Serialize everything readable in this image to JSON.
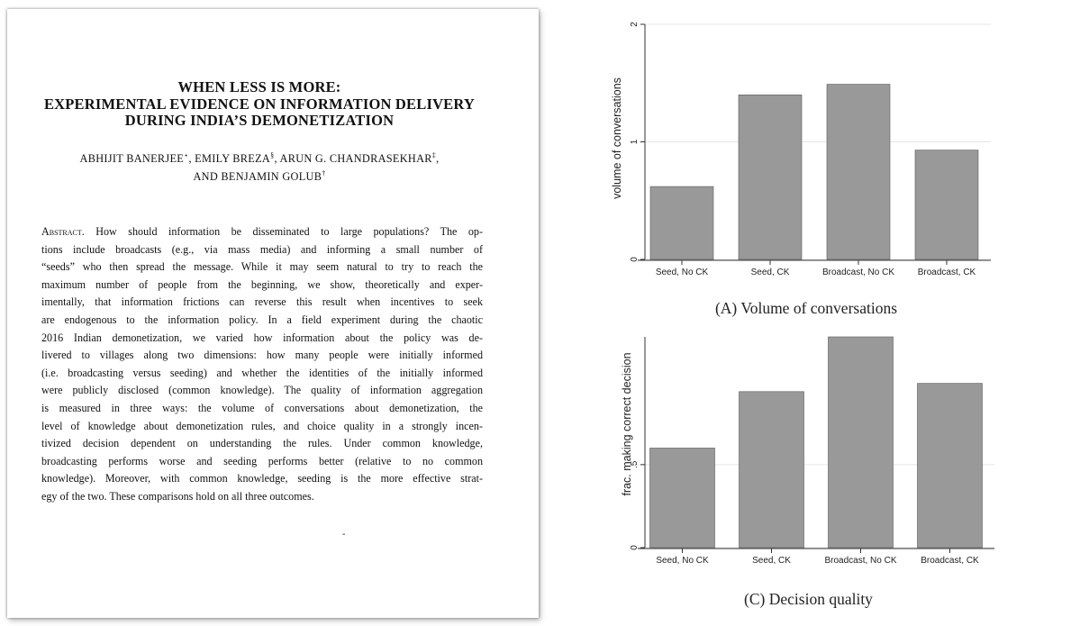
{
  "paper": {
    "title_lines": [
      "WHEN LESS IS MORE:",
      "EXPERIMENTAL EVIDENCE ON INFORMATION DELIVERY",
      "DURING INDIA’S DEMONETIZATION"
    ],
    "authors": {
      "a1": "ABHIJIT BANERJEE",
      "m1": "⋆",
      "a2": ", EMILY BREZA",
      "m2": "§",
      "a3": ", ARUN G. CHANDRASEKHAR",
      "m3": "‡",
      "a4": ",",
      "a5": "AND BENJAMIN GOLUB",
      "m5": "†"
    },
    "abstract_head": "Abstract.",
    "abstract_lines": [
      " How should information be disseminated to large populations? The op-",
      "tions include broadcasts (e.g., via mass media) and informing a small number of",
      "“seeds” who then spread the message. While it may seem natural to try to reach the",
      "maximum number of people from the beginning, we show, theoretically and exper-",
      "imentally, that information frictions can reverse this result when incentives to seek",
      "are endogenous to the information policy. In a field experiment during the chaotic",
      "2016 Indian demonetization, we varied how information about the policy was de-",
      "livered to villages along two dimensions: how many people were initially informed",
      "(i.e. broadcasting versus seeding) and whether the identities of the initially informed",
      "were publicly disclosed (common knowledge). The quality of information aggregation",
      "is measured in three ways: the volume of conversations about demonetization, the",
      "level of knowledge about demonetization rules, and choice quality in a strongly incen-",
      "tivized decision dependent on understanding the rules. Under common knowledge,",
      "broadcasting performs worse and seeding performs better (relative to no common",
      "knowledge). Moreover, with common knowledge, seeding is the more effective strat-",
      "egy of the two. These comparisons hold on all three outcomes."
    ],
    "footnote_mark": "-"
  },
  "chart_data": [
    {
      "type": "bar",
      "categories": [
        "Seed, No CK",
        "Seed, CK",
        "Broadcast, No CK",
        "Broadcast, CK"
      ],
      "values": [
        0.62,
        1.4,
        1.49,
        0.93
      ],
      "ylabel": "volume of conversations",
      "ylim": [
        0,
        2
      ],
      "yticks": [
        "0",
        "1",
        "2"
      ],
      "grid": true,
      "bar_color": "#999999",
      "caption_label": "(A)",
      "caption_text": "Volume of conversations"
    },
    {
      "type": "bar",
      "categories": [
        "Seed, No CK",
        "Seed, CK",
        "Broadcast, No CK",
        "Broadcast, CK"
      ],
      "values": [
        0.6,
        0.94,
        1.27,
        0.99
      ],
      "ylabel": "frac. making correct decision",
      "ylim": [
        0,
        1.27
      ],
      "yticks": [
        "0",
        ".5"
      ],
      "grid": true,
      "bar_color": "#999999",
      "caption_label": "(C)",
      "caption_text": "Decision quality"
    }
  ]
}
